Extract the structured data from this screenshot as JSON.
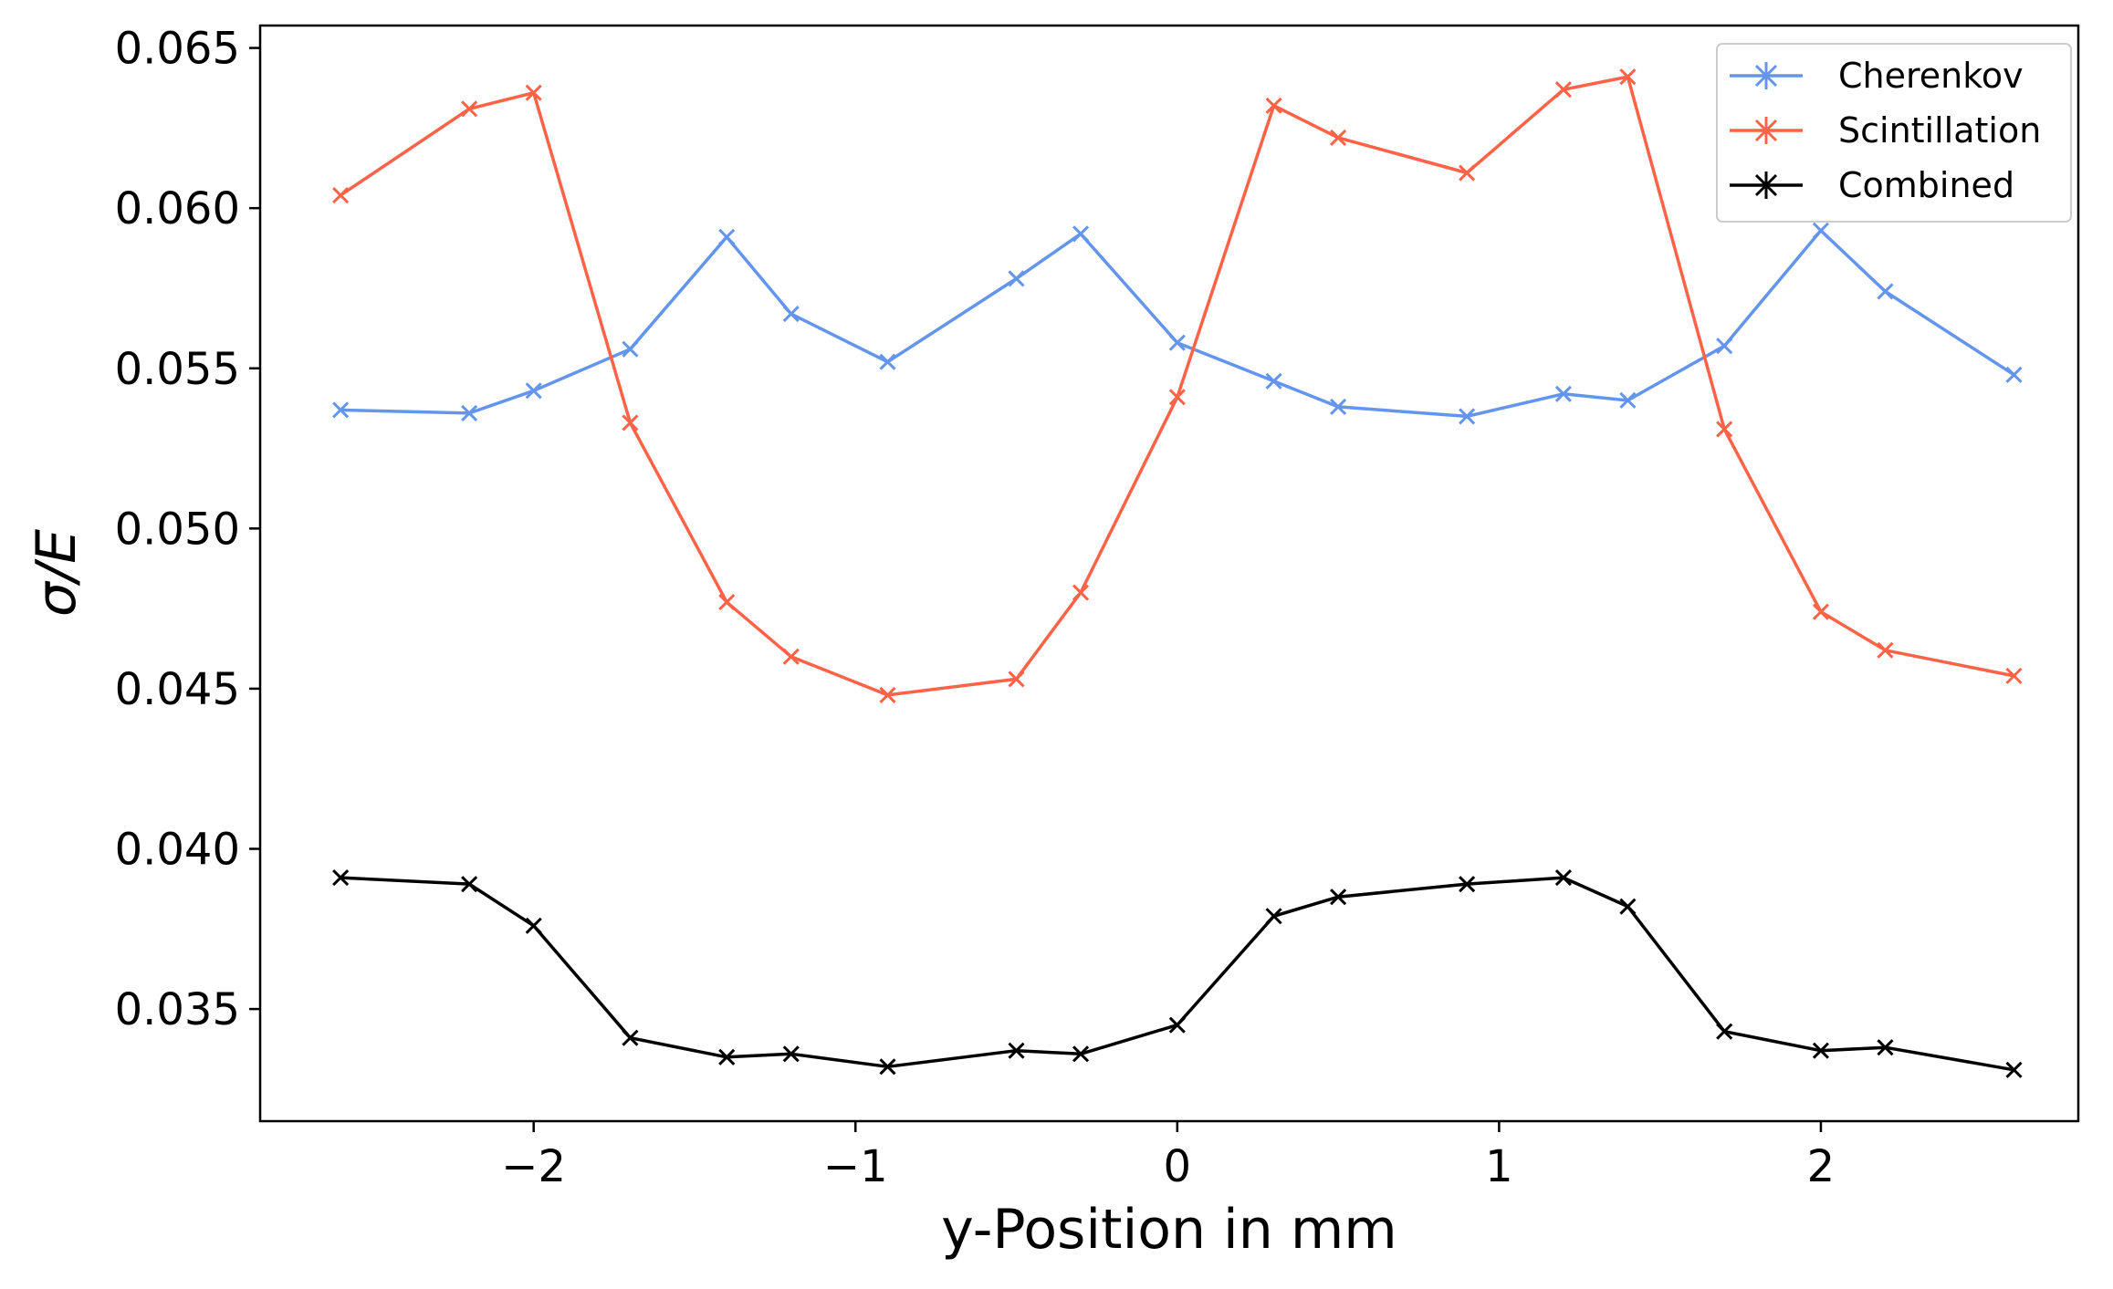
{
  "chart_data": {
    "type": "line",
    "title": "",
    "xlabel": "y-Position in mm",
    "ylabel": "σ/E",
    "xlim": [
      -2.85,
      2.8
    ],
    "ylim": [
      0.0315,
      0.0657
    ],
    "xticks": [
      -2,
      -1,
      0,
      1,
      2
    ],
    "xtick_labels": [
      "−2",
      "−1",
      "0",
      "1",
      "2"
    ],
    "yticks": [
      0.035,
      0.04,
      0.045,
      0.05,
      0.055,
      0.06,
      0.065
    ],
    "ytick_labels": [
      "0.035",
      "0.040",
      "0.045",
      "0.050",
      "0.055",
      "0.060",
      "0.065"
    ],
    "grid": false,
    "legend_position": "top-right",
    "series": [
      {
        "name": "Cherenkov",
        "color": "#6495ED",
        "marker": "x",
        "x": [
          -2.6,
          -2.2,
          -2.0,
          -1.7,
          -1.4,
          -1.2,
          -0.9,
          -0.5,
          -0.3,
          0.0,
          0.3,
          0.5,
          0.9,
          1.2,
          1.4,
          1.7,
          2.0,
          2.2,
          2.6
        ],
        "y": [
          0.0537,
          0.0536,
          0.0543,
          0.0556,
          0.0591,
          0.0567,
          0.0552,
          0.0578,
          0.0592,
          0.0558,
          0.0546,
          0.0538,
          0.0535,
          0.0542,
          0.054,
          0.0557,
          0.0593,
          0.0574,
          0.0548
        ]
      },
      {
        "name": "Scintillation",
        "color": "#FF6347",
        "marker": "x",
        "x": [
          -2.6,
          -2.2,
          -2.0,
          -1.7,
          -1.4,
          -1.2,
          -0.9,
          -0.5,
          -0.3,
          0.0,
          0.3,
          0.5,
          0.9,
          1.2,
          1.4,
          1.7,
          2.0,
          2.2,
          2.6
        ],
        "y": [
          0.0604,
          0.0631,
          0.0636,
          0.0533,
          0.0477,
          0.046,
          0.0448,
          0.0453,
          0.048,
          0.0541,
          0.0632,
          0.0622,
          0.0611,
          0.0637,
          0.0641,
          0.0531,
          0.0474,
          0.0462,
          0.0454
        ]
      },
      {
        "name": "Combined",
        "color": "#000000",
        "marker": "x",
        "x": [
          -2.6,
          -2.2,
          -2.0,
          -1.7,
          -1.4,
          -1.2,
          -0.9,
          -0.5,
          -0.3,
          0.0,
          0.3,
          0.5,
          0.9,
          1.2,
          1.4,
          1.7,
          2.0,
          2.2,
          2.6
        ],
        "y": [
          0.0391,
          0.0389,
          0.0376,
          0.0341,
          0.0335,
          0.0336,
          0.0332,
          0.0337,
          0.0336,
          0.0345,
          0.0379,
          0.0385,
          0.0389,
          0.0391,
          0.0382,
          0.0343,
          0.0337,
          0.0338,
          0.0331
        ]
      }
    ]
  }
}
